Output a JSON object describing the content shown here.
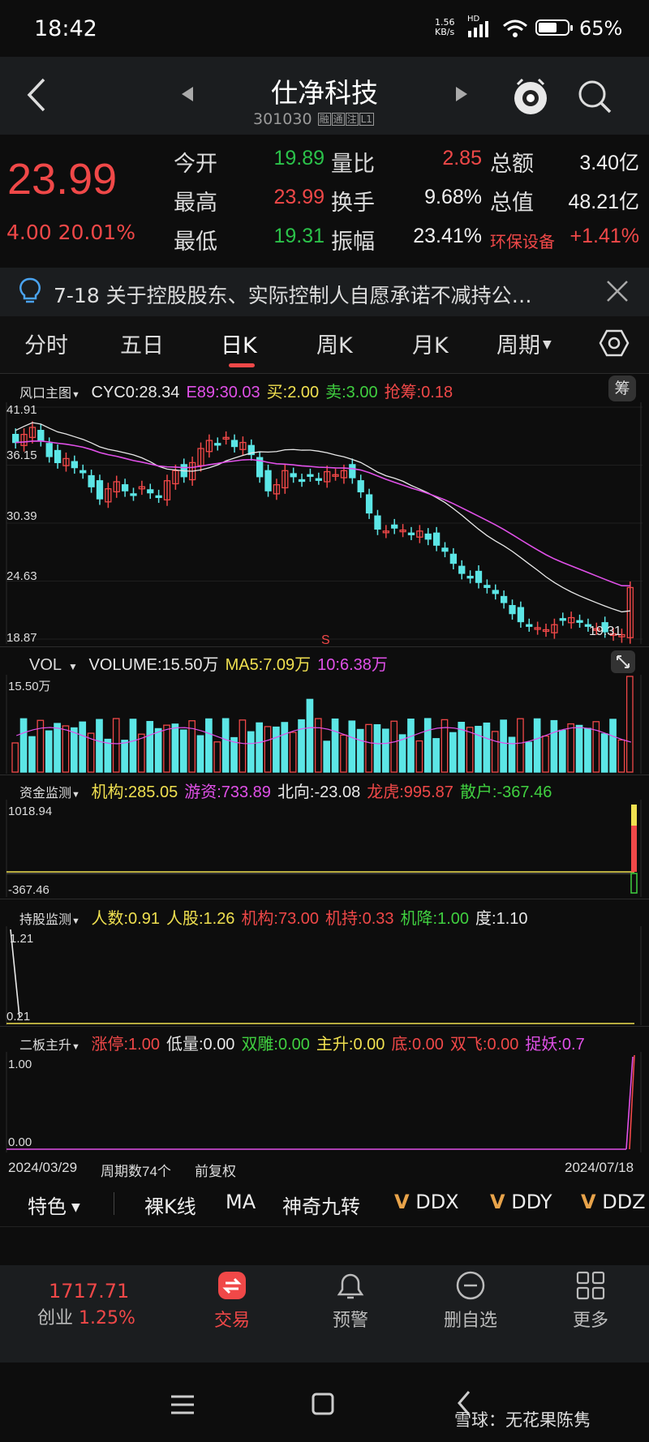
{
  "status_bar": {
    "time": "18:42",
    "net_speed_value": "1.56",
    "net_speed_unit": "KB/s",
    "network_label": "HD",
    "battery_pct": "65%",
    "battery_level": 0.65
  },
  "header": {
    "name": "仕净科技",
    "code": "301030",
    "tags": [
      "融",
      "通",
      "注",
      "L1"
    ]
  },
  "quote": {
    "price": "23.99",
    "change": "4.00",
    "change_pct": "20.01%",
    "rows": [
      [
        {
          "label": "今开",
          "value": "19.89",
          "color": "green"
        },
        {
          "label": "量比",
          "value": "2.85",
          "color": "red"
        },
        {
          "label": "总额",
          "value": "3.40亿",
          "color": "white"
        }
      ],
      [
        {
          "label": "最高",
          "value": "23.99",
          "color": "red"
        },
        {
          "label": "换手",
          "value": "9.68%",
          "color": "white"
        },
        {
          "label": "总值",
          "value": "48.21亿",
          "color": "white"
        }
      ],
      [
        {
          "label": "最低",
          "value": "19.31",
          "color": "green"
        },
        {
          "label": "振幅",
          "value": "23.41%",
          "color": "white"
        },
        {
          "label": "环保设备",
          "value": "+1.41%",
          "color": "red"
        }
      ]
    ]
  },
  "notice": {
    "text": "7-18 关于控股股东、实际控制人自愿承诺不减持公…"
  },
  "tabs": [
    "分时",
    "五日",
    "日K",
    "周K",
    "月K",
    "周期"
  ],
  "active_tab": "日K",
  "main_chart": {
    "indicator": "风口主图",
    "params": [
      {
        "text": "CYC0:28.34",
        "color": "#e8e8e8"
      },
      {
        "text": "E89:30.03",
        "color": "#e050e8"
      },
      {
        "text": "买:2.00",
        "color": "#f0e050"
      },
      {
        "text": "卖:3.00",
        "color": "#40d040"
      },
      {
        "text": "抢筹:0.18",
        "color": "#f04848"
      }
    ],
    "badge": "筹",
    "price_labels": [
      "41.91",
      "36.15",
      "30.39",
      "24.63",
      "18.87"
    ],
    "last_label": "19.31",
    "sell_mark": "S"
  },
  "volume": {
    "indicator": "VOL",
    "params": [
      {
        "text": "VOLUME:15.50万",
        "color": "#e8e8e8"
      },
      {
        "text": "MA5:7.09万",
        "color": "#f0e050"
      },
      {
        "text": "10:6.38万",
        "color": "#e050e8"
      }
    ],
    "max_label": "15.50万"
  },
  "fund_monitor": {
    "indicator": "资金监测",
    "params": [
      {
        "text": "机构:285.05",
        "color": "#f0e050"
      },
      {
        "text": "游资:733.89",
        "color": "#e050e8"
      },
      {
        "text": "北向:-23.08",
        "color": "#e8e8e8"
      },
      {
        "text": "龙虎:995.87",
        "color": "#f04848"
      },
      {
        "text": "散户:-367.46",
        "color": "#40d040"
      }
    ],
    "max_label": "1018.94",
    "min_label": "-367.46"
  },
  "holding_monitor": {
    "indicator": "持股监测",
    "params": [
      {
        "text": "人数:0.91",
        "color": "#f0e050"
      },
      {
        "text": "人股:1.26",
        "color": "#f0e050"
      },
      {
        "text": "机构:73.00",
        "color": "#f04848"
      },
      {
        "text": "机持:0.33",
        "color": "#f04848"
      },
      {
        "text": "机降:1.00",
        "color": "#40d040"
      },
      {
        "text": "度:1.10",
        "color": "#e8e8e8"
      }
    ],
    "max_label": "1.21",
    "min_label": "0.21"
  },
  "second_board": {
    "indicator": "二板主升",
    "params": [
      {
        "text": "涨停:1.00",
        "color": "#f04848"
      },
      {
        "text": "低量:0.00",
        "color": "#e8e8e8"
      },
      {
        "text": "双雕:0.00",
        "color": "#40d040"
      },
      {
        "text": "主升:0.00",
        "color": "#f0e050"
      },
      {
        "text": "底:0.00",
        "color": "#f04848"
      },
      {
        "text": "双飞:0.00",
        "color": "#f04848"
      },
      {
        "text": "捉妖:0.7",
        "color": "#e050e8"
      }
    ],
    "max_label": "1.00",
    "min_label": "0.00"
  },
  "chart_footer": {
    "start_date": "2024/03/29",
    "period_count": "周期数74个",
    "adjust": "前复权",
    "end_date": "2024/07/18"
  },
  "toolbar": {
    "feature": "特色",
    "items": [
      "裸K线",
      "MA",
      "神奇九转"
    ],
    "v_items": [
      "DDX",
      "DDY",
      "DDZ"
    ],
    "v_mark": "V"
  },
  "bottom_nav": {
    "index_value": "1717.71",
    "index_name": "创业",
    "index_pct": "1.25%",
    "items": [
      {
        "label": "交易",
        "icon": "trade-icon"
      },
      {
        "label": "预警",
        "icon": "bell-icon"
      },
      {
        "label": "删自选",
        "icon": "remove-watchlist-icon"
      },
      {
        "label": "更多",
        "icon": "grid-icon"
      }
    ]
  },
  "watermark": "雪球：无花果陈隽"
}
